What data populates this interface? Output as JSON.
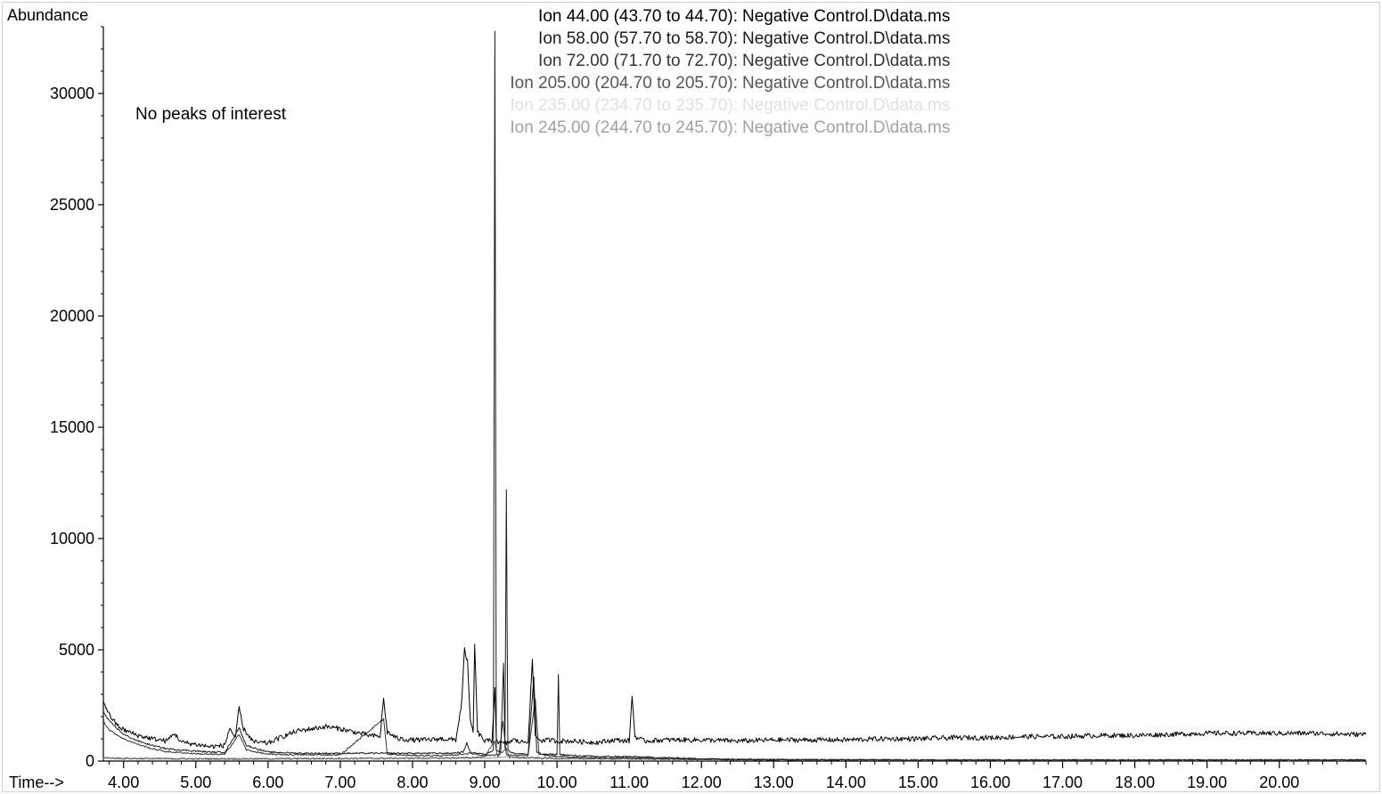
{
  "chart_data": {
    "type": "line",
    "ylabel": "Abundance",
    "xlabel": "Time-->",
    "annotation": "No peaks of interest",
    "xlim": [
      3.72,
      21.2
    ],
    "ylim": [
      0,
      33000
    ],
    "x_ticks": [
      "4.00",
      "5.00",
      "6.00",
      "7.00",
      "8.00",
      "9.00",
      "10.00",
      "11.00",
      "12.00",
      "13.00",
      "14.00",
      "15.00",
      "16.00",
      "17.00",
      "18.00",
      "19.00",
      "20.00"
    ],
    "y_ticks": [
      "0",
      "5000",
      "10000",
      "15000",
      "20000",
      "25000",
      "30000"
    ],
    "grid": false,
    "legend_placement": "top-center",
    "series": [
      {
        "name": "Ion  44.00 (43.70 to 44.70): Negative Control.D\\data.ms",
        "color": "#000000",
        "points": [
          [
            3.72,
            2700
          ],
          [
            3.8,
            2100
          ],
          [
            3.9,
            1650
          ],
          [
            4.0,
            1400
          ],
          [
            4.2,
            1150
          ],
          [
            4.4,
            1000
          ],
          [
            4.6,
            900
          ],
          [
            4.7,
            1250
          ],
          [
            4.8,
            850
          ],
          [
            5.0,
            750
          ],
          [
            5.2,
            650
          ],
          [
            5.4,
            700
          ],
          [
            5.47,
            1500
          ],
          [
            5.55,
            1000
          ],
          [
            5.6,
            2450
          ],
          [
            5.65,
            1500
          ],
          [
            5.8,
            850
          ],
          [
            6.0,
            800
          ],
          [
            6.2,
            1100
          ],
          [
            6.4,
            1350
          ],
          [
            6.6,
            1450
          ],
          [
            6.8,
            1550
          ],
          [
            7.0,
            1450
          ],
          [
            7.2,
            1300
          ],
          [
            7.4,
            1150
          ],
          [
            7.55,
            1100
          ],
          [
            7.6,
            2800
          ],
          [
            7.65,
            1300
          ],
          [
            7.8,
            1000
          ],
          [
            8.0,
            950
          ],
          [
            8.2,
            950
          ],
          [
            8.4,
            1000
          ],
          [
            8.6,
            950
          ],
          [
            8.68,
            2600
          ],
          [
            8.72,
            5000
          ],
          [
            8.76,
            4500
          ],
          [
            8.8,
            1800
          ],
          [
            8.84,
            1300
          ],
          [
            8.86,
            5300
          ],
          [
            8.9,
            1300
          ],
          [
            9.0,
            900
          ],
          [
            9.1,
            900
          ],
          [
            9.14,
            3300
          ],
          [
            9.16,
            1000
          ],
          [
            9.2,
            800
          ],
          [
            9.3,
            800
          ],
          [
            9.4,
            950
          ],
          [
            9.5,
            850
          ],
          [
            9.6,
            900
          ],
          [
            9.66,
            4500
          ],
          [
            9.7,
            1100
          ],
          [
            9.8,
            900
          ],
          [
            9.9,
            950
          ],
          [
            10.0,
            900
          ],
          [
            10.2,
            900
          ],
          [
            10.4,
            850
          ],
          [
            10.6,
            850
          ],
          [
            10.8,
            950
          ],
          [
            11.0,
            900
          ],
          [
            11.04,
            2900
          ],
          [
            11.08,
            1100
          ],
          [
            11.2,
            900
          ],
          [
            11.5,
            950
          ],
          [
            12.0,
            950
          ],
          [
            12.5,
            900
          ],
          [
            13.0,
            950
          ],
          [
            13.5,
            950
          ],
          [
            14.0,
            950
          ],
          [
            14.5,
            1000
          ],
          [
            15.0,
            1000
          ],
          [
            15.5,
            1050
          ],
          [
            16.0,
            1050
          ],
          [
            16.5,
            1100
          ],
          [
            17.0,
            1100
          ],
          [
            17.5,
            1150
          ],
          [
            18.0,
            1150
          ],
          [
            18.5,
            1200
          ],
          [
            19.0,
            1250
          ],
          [
            19.5,
            1250
          ],
          [
            20.0,
            1250
          ],
          [
            20.5,
            1250
          ],
          [
            21.0,
            1200
          ],
          [
            21.2,
            1200
          ]
        ]
      },
      {
        "name": "Ion  58.00 (57.70 to 58.70): Negative Control.D\\data.ms",
        "color": "#1a1a1a",
        "points": [
          [
            3.72,
            2200
          ],
          [
            3.8,
            1800
          ],
          [
            4.0,
            1200
          ],
          [
            4.2,
            900
          ],
          [
            4.4,
            700
          ],
          [
            4.6,
            550
          ],
          [
            4.8,
            500
          ],
          [
            5.0,
            450
          ],
          [
            5.2,
            400
          ],
          [
            5.4,
            400
          ],
          [
            5.5,
            900
          ],
          [
            5.6,
            1500
          ],
          [
            5.7,
            700
          ],
          [
            6.0,
            400
          ],
          [
            6.5,
            350
          ],
          [
            7.0,
            350
          ],
          [
            7.5,
            350
          ],
          [
            8.0,
            350
          ],
          [
            8.5,
            350
          ],
          [
            8.7,
            400
          ],
          [
            8.75,
            800
          ],
          [
            8.8,
            400
          ],
          [
            9.0,
            300
          ],
          [
            9.12,
            500
          ],
          [
            9.14,
            32800
          ],
          [
            9.16,
            500
          ],
          [
            9.22,
            400
          ],
          [
            9.26,
            4400
          ],
          [
            9.28,
            600
          ],
          [
            9.3,
            12200
          ],
          [
            9.32,
            500
          ],
          [
            9.4,
            350
          ],
          [
            9.6,
            300
          ],
          [
            9.68,
            3800
          ],
          [
            9.72,
            400
          ],
          [
            9.8,
            300
          ],
          [
            10.0,
            300
          ],
          [
            10.02,
            3900
          ],
          [
            10.04,
            300
          ],
          [
            10.2,
            250
          ],
          [
            10.6,
            200
          ],
          [
            11.0,
            200
          ],
          [
            11.5,
            150
          ],
          [
            12.0,
            100
          ],
          [
            12.5,
            80
          ],
          [
            13.0,
            60
          ],
          [
            14.0,
            50
          ],
          [
            16.0,
            40
          ],
          [
            18.0,
            40
          ],
          [
            21.2,
            40
          ]
        ]
      },
      {
        "name": "Ion  72.00 (71.70 to 72.70): Negative Control.D\\data.ms",
        "color": "#333333",
        "points": [
          [
            3.72,
            1800
          ],
          [
            3.8,
            1400
          ],
          [
            4.0,
            1000
          ],
          [
            4.2,
            750
          ],
          [
            4.4,
            550
          ],
          [
            4.6,
            420
          ],
          [
            4.8,
            380
          ],
          [
            5.0,
            330
          ],
          [
            5.2,
            300
          ],
          [
            5.4,
            300
          ],
          [
            5.6,
            1200
          ],
          [
            5.7,
            500
          ],
          [
            6.0,
            300
          ],
          [
            6.5,
            280
          ],
          [
            7.0,
            280
          ],
          [
            7.6,
            1900
          ],
          [
            7.65,
            300
          ],
          [
            8.0,
            250
          ],
          [
            8.5,
            250
          ],
          [
            8.8,
            350
          ],
          [
            9.0,
            250
          ],
          [
            9.2,
            300
          ],
          [
            9.25,
            1800
          ],
          [
            9.3,
            300
          ],
          [
            9.4,
            250
          ],
          [
            9.6,
            250
          ],
          [
            9.7,
            2800
          ],
          [
            9.75,
            300
          ],
          [
            10.0,
            200
          ],
          [
            10.5,
            150
          ],
          [
            11.0,
            150
          ],
          [
            12.0,
            80
          ],
          [
            13.0,
            60
          ],
          [
            15.0,
            40
          ],
          [
            18.0,
            40
          ],
          [
            21.2,
            40
          ]
        ]
      },
      {
        "name": "Ion 205.00 (204.70 to 205.70): Negative Control.D\\data.ms",
        "color": "#555555",
        "points": [
          [
            3.72,
            150
          ],
          [
            4.0,
            120
          ],
          [
            5.0,
            100
          ],
          [
            6.0,
            100
          ],
          [
            7.0,
            120
          ],
          [
            8.0,
            130
          ],
          [
            8.8,
            150
          ],
          [
            9.0,
            200
          ],
          [
            9.14,
            900
          ],
          [
            9.18,
            200
          ],
          [
            9.3,
            600
          ],
          [
            9.34,
            150
          ],
          [
            9.6,
            150
          ],
          [
            10.0,
            120
          ],
          [
            11.0,
            100
          ],
          [
            12.0,
            80
          ],
          [
            13.0,
            60
          ],
          [
            15.0,
            40
          ],
          [
            18.0,
            40
          ],
          [
            21.2,
            40
          ]
        ]
      },
      {
        "name": "Ion 235.00 (234.70 to 235.70): Negative Control.D\\data.ms",
        "color": "#e0e0e0",
        "points": [
          [
            3.72,
            100
          ],
          [
            5.0,
            80
          ],
          [
            8.0,
            90
          ],
          [
            9.0,
            100
          ],
          [
            10.0,
            80
          ],
          [
            12.0,
            60
          ],
          [
            15.0,
            40
          ],
          [
            21.2,
            40
          ]
        ]
      },
      {
        "name": "Ion 245.00 (244.70 to 245.70): Negative Control.D\\data.ms",
        "color": "#a0a0a0",
        "points": [
          [
            3.72,
            120
          ],
          [
            5.0,
            100
          ],
          [
            8.0,
            110
          ],
          [
            9.0,
            130
          ],
          [
            9.3,
            200
          ],
          [
            10.0,
            100
          ],
          [
            12.0,
            80
          ],
          [
            15.0,
            50
          ],
          [
            21.2,
            50
          ]
        ]
      }
    ]
  }
}
